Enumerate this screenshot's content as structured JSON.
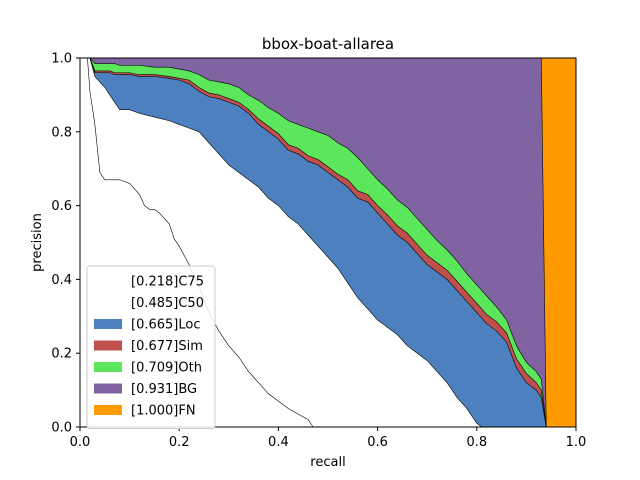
{
  "chart_data": {
    "type": "area",
    "title": "bbox-boat-allarea",
    "xlabel": "recall",
    "ylabel": "precision",
    "xlim": [
      0,
      1
    ],
    "ylim": [
      0,
      1
    ],
    "xticks": [
      "0.0",
      "0.2",
      "0.4",
      "0.6",
      "0.8",
      "1.0"
    ],
    "yticks": [
      "0.0",
      "0.2",
      "0.4",
      "0.6",
      "0.8",
      "1.0"
    ],
    "grid": false,
    "legend_position": "lower-left",
    "series": [
      {
        "name": "[0.218]C75",
        "color": "#ffffff",
        "x": [
          0.0,
          0.015,
          0.02,
          0.03,
          0.04,
          0.05,
          0.08,
          0.1,
          0.12,
          0.13,
          0.14,
          0.15,
          0.16,
          0.18,
          0.19,
          0.2,
          0.22,
          0.24,
          0.26,
          0.28,
          0.3,
          0.32,
          0.34,
          0.36,
          0.38,
          0.4,
          0.42,
          0.44,
          0.46,
          0.47,
          0.48
        ],
        "y": [
          1.0,
          1.0,
          0.91,
          0.82,
          0.69,
          0.67,
          0.67,
          0.66,
          0.63,
          0.6,
          0.59,
          0.59,
          0.58,
          0.55,
          0.51,
          0.49,
          0.44,
          0.38,
          0.31,
          0.26,
          0.22,
          0.19,
          0.15,
          0.12,
          0.09,
          0.07,
          0.05,
          0.035,
          0.02,
          0.0,
          0.0
        ]
      },
      {
        "name": "[0.485]C50",
        "color": "#ffffff",
        "x": [
          0.0,
          0.02,
          0.03,
          0.05,
          0.06,
          0.07,
          0.08,
          0.1,
          0.12,
          0.15,
          0.18,
          0.2,
          0.22,
          0.24,
          0.26,
          0.28,
          0.3,
          0.32,
          0.34,
          0.36,
          0.38,
          0.4,
          0.42,
          0.44,
          0.46,
          0.48,
          0.5,
          0.52,
          0.54,
          0.56,
          0.58,
          0.6,
          0.62,
          0.64,
          0.66,
          0.68,
          0.7,
          0.72,
          0.74,
          0.76,
          0.78,
          0.79,
          0.8,
          0.81
        ],
        "y": [
          1.0,
          1.0,
          0.95,
          0.92,
          0.9,
          0.88,
          0.86,
          0.86,
          0.85,
          0.84,
          0.83,
          0.82,
          0.81,
          0.8,
          0.77,
          0.74,
          0.71,
          0.69,
          0.67,
          0.65,
          0.62,
          0.6,
          0.57,
          0.55,
          0.52,
          0.49,
          0.46,
          0.43,
          0.39,
          0.35,
          0.32,
          0.29,
          0.27,
          0.25,
          0.22,
          0.2,
          0.18,
          0.15,
          0.12,
          0.08,
          0.05,
          0.03,
          0.01,
          0.0
        ]
      },
      {
        "name": "[0.665]Loc",
        "color": "#4c80bf",
        "x": [
          0.0,
          0.02,
          0.03,
          0.05,
          0.06,
          0.07,
          0.08,
          0.1,
          0.12,
          0.15,
          0.18,
          0.2,
          0.22,
          0.24,
          0.26,
          0.28,
          0.3,
          0.32,
          0.34,
          0.36,
          0.38,
          0.4,
          0.42,
          0.44,
          0.46,
          0.48,
          0.5,
          0.52,
          0.54,
          0.56,
          0.58,
          0.6,
          0.62,
          0.64,
          0.66,
          0.68,
          0.7,
          0.72,
          0.74,
          0.76,
          0.78,
          0.8,
          0.82,
          0.84,
          0.86,
          0.88,
          0.9,
          0.92,
          0.93,
          0.94
        ],
        "y": [
          1.0,
          1.0,
          0.96,
          0.96,
          0.96,
          0.955,
          0.955,
          0.955,
          0.95,
          0.95,
          0.945,
          0.94,
          0.93,
          0.91,
          0.895,
          0.89,
          0.88,
          0.87,
          0.85,
          0.82,
          0.8,
          0.78,
          0.75,
          0.74,
          0.72,
          0.71,
          0.69,
          0.67,
          0.65,
          0.62,
          0.61,
          0.58,
          0.55,
          0.52,
          0.5,
          0.47,
          0.44,
          0.42,
          0.4,
          0.37,
          0.34,
          0.31,
          0.28,
          0.26,
          0.23,
          0.16,
          0.12,
          0.1,
          0.08,
          0.0
        ]
      },
      {
        "name": "[0.677]Sim",
        "color": "#c0504d",
        "x": [
          0.0,
          0.02,
          0.03,
          0.05,
          0.06,
          0.07,
          0.08,
          0.1,
          0.12,
          0.15,
          0.18,
          0.2,
          0.22,
          0.24,
          0.26,
          0.28,
          0.3,
          0.32,
          0.34,
          0.36,
          0.38,
          0.4,
          0.42,
          0.44,
          0.46,
          0.48,
          0.5,
          0.52,
          0.54,
          0.56,
          0.58,
          0.6,
          0.62,
          0.64,
          0.66,
          0.68,
          0.7,
          0.72,
          0.74,
          0.76,
          0.78,
          0.8,
          0.82,
          0.84,
          0.86,
          0.88,
          0.9,
          0.92,
          0.93,
          0.94
        ],
        "y": [
          1.0,
          1.0,
          0.965,
          0.965,
          0.965,
          0.96,
          0.96,
          0.96,
          0.955,
          0.955,
          0.95,
          0.945,
          0.94,
          0.92,
          0.905,
          0.9,
          0.89,
          0.88,
          0.86,
          0.835,
          0.815,
          0.795,
          0.765,
          0.755,
          0.735,
          0.725,
          0.705,
          0.685,
          0.67,
          0.64,
          0.63,
          0.6,
          0.575,
          0.545,
          0.525,
          0.495,
          0.465,
          0.445,
          0.425,
          0.395,
          0.365,
          0.335,
          0.305,
          0.285,
          0.255,
          0.185,
          0.145,
          0.12,
          0.1,
          0.0
        ]
      },
      {
        "name": "[0.709]Oth",
        "color": "#5ce65c",
        "x": [
          0.0,
          0.02,
          0.03,
          0.05,
          0.06,
          0.07,
          0.08,
          0.1,
          0.12,
          0.15,
          0.18,
          0.2,
          0.22,
          0.24,
          0.26,
          0.28,
          0.3,
          0.32,
          0.34,
          0.36,
          0.38,
          0.4,
          0.42,
          0.44,
          0.46,
          0.48,
          0.5,
          0.52,
          0.54,
          0.56,
          0.58,
          0.6,
          0.62,
          0.64,
          0.66,
          0.68,
          0.7,
          0.72,
          0.74,
          0.76,
          0.78,
          0.8,
          0.82,
          0.84,
          0.86,
          0.88,
          0.9,
          0.92,
          0.93,
          0.94
        ],
        "y": [
          1.0,
          1.0,
          0.985,
          0.985,
          0.985,
          0.985,
          0.98,
          0.98,
          0.98,
          0.975,
          0.975,
          0.97,
          0.965,
          0.955,
          0.94,
          0.935,
          0.93,
          0.92,
          0.9,
          0.885,
          0.865,
          0.85,
          0.83,
          0.82,
          0.81,
          0.8,
          0.79,
          0.77,
          0.755,
          0.73,
          0.7,
          0.67,
          0.645,
          0.615,
          0.595,
          0.565,
          0.535,
          0.505,
          0.48,
          0.45,
          0.415,
          0.385,
          0.355,
          0.325,
          0.29,
          0.22,
          0.175,
          0.15,
          0.13,
          0.0
        ]
      },
      {
        "name": "[0.931]BG",
        "color": "#8063a1",
        "x": [
          0.0,
          0.93,
          0.94
        ],
        "y": [
          1.0,
          1.0,
          0.0
        ]
      },
      {
        "name": "[1.000]FN",
        "color": "#ff9b00",
        "x": [
          0.0,
          1.0
        ],
        "y": [
          1.0,
          1.0
        ]
      }
    ]
  }
}
